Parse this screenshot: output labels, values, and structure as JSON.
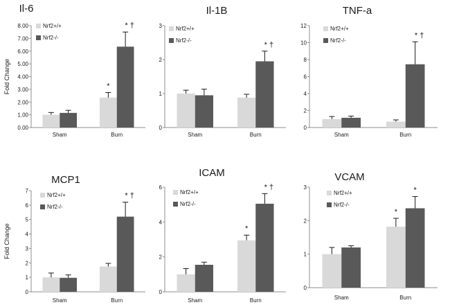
{
  "colors": {
    "wt": "#d9d9d9",
    "ko": "#595959",
    "axis": "#8c8c8c",
    "error": "#1a1a1a"
  },
  "chart_data": [
    {
      "type": "bar",
      "title": "Il-6",
      "ylabel": "Fold Change",
      "categories": [
        "Sham",
        "Burn"
      ],
      "ylim": [
        0,
        8
      ],
      "yticks": [
        "0.00",
        "1.00",
        "2.00",
        "3.00",
        "4.00",
        "5.00",
        "6.00",
        "7.00",
        "8.00"
      ],
      "legend": [
        "Nrf2+/+",
        "Nrf2-/-"
      ],
      "series": [
        {
          "name": "Nrf2+/+",
          "values": [
            1.0,
            2.35
          ],
          "errors": [
            0.18,
            0.4
          ],
          "annotations": [
            "",
            "*"
          ]
        },
        {
          "name": "Nrf2-/-",
          "values": [
            1.15,
            6.35
          ],
          "errors": [
            0.2,
            1.15
          ],
          "annotations": [
            "",
            "*  †"
          ]
        }
      ]
    },
    {
      "type": "bar",
      "title": "Il-1B",
      "ylabel": "",
      "categories": [
        "Sham",
        "Burn"
      ],
      "ylim": [
        0,
        3
      ],
      "yticks": [
        "0",
        "1",
        "2",
        "3"
      ],
      "legend": [
        "Nrf2+/+",
        "Nrf2-/-"
      ],
      "series": [
        {
          "name": "Nrf2+/+",
          "values": [
            1.0,
            0.88
          ],
          "errors": [
            0.1,
            0.1
          ],
          "annotations": [
            "",
            ""
          ]
        },
        {
          "name": "Nrf2-/-",
          "values": [
            0.95,
            1.95
          ],
          "errors": [
            0.18,
            0.3
          ],
          "annotations": [
            "",
            "*  †"
          ]
        }
      ]
    },
    {
      "type": "bar",
      "title": "TNF-a",
      "ylabel": "",
      "categories": [
        "Sham",
        "Burn"
      ],
      "ylim": [
        0,
        12
      ],
      "yticks": [
        "0",
        "2",
        "4",
        "6",
        "8",
        "10",
        "12"
      ],
      "legend": [
        "Nrf2+/+",
        "Nrf2-/-"
      ],
      "series": [
        {
          "name": "Nrf2+/+",
          "values": [
            1.0,
            0.7
          ],
          "errors": [
            0.3,
            0.2
          ],
          "annotations": [
            "",
            ""
          ]
        },
        {
          "name": "Nrf2-/-",
          "values": [
            1.15,
            7.45
          ],
          "errors": [
            0.2,
            2.65
          ],
          "annotations": [
            "",
            "*  †"
          ]
        }
      ]
    },
    {
      "type": "bar",
      "title": "MCP1",
      "ylabel": "Fold Change",
      "categories": [
        "Sham",
        "Burn"
      ],
      "ylim": [
        0,
        7
      ],
      "yticks": [
        "0",
        "1",
        "2",
        "3",
        "4",
        "5",
        "6",
        "7"
      ],
      "legend": [
        "Nrf2+/+",
        "Nrf2-/-"
      ],
      "series": [
        {
          "name": "Nrf2+/+",
          "values": [
            1.0,
            1.75
          ],
          "errors": [
            0.3,
            0.22
          ],
          "annotations": [
            "",
            ""
          ]
        },
        {
          "name": "Nrf2-/-",
          "values": [
            0.97,
            5.2
          ],
          "errors": [
            0.2,
            1.0
          ],
          "annotations": [
            "",
            "*  †"
          ]
        }
      ]
    },
    {
      "type": "bar",
      "title": "ICAM",
      "ylabel": "",
      "categories": [
        "Sham",
        "Burn"
      ],
      "ylim": [
        0,
        6
      ],
      "yticks": [
        "0",
        "2",
        "4",
        "6"
      ],
      "legend": [
        "Nrf2+/+",
        "Nrf2-/-"
      ],
      "series": [
        {
          "name": "Nrf2+/+",
          "values": [
            1.0,
            2.95
          ],
          "errors": [
            0.33,
            0.3
          ],
          "annotations": [
            "",
            "*"
          ]
        },
        {
          "name": "Nrf2-/-",
          "values": [
            1.55,
            5.05
          ],
          "errors": [
            0.15,
            0.58
          ],
          "annotations": [
            "",
            "*  †"
          ]
        }
      ]
    },
    {
      "type": "bar",
      "title": "VCAM",
      "ylabel": "",
      "categories": [
        "Sham",
        "Burn"
      ],
      "ylim": [
        0,
        3
      ],
      "yticks": [
        "0",
        "1",
        "2",
        "3"
      ],
      "legend": [
        "Nrf2+/+",
        "Nrf2-/-"
      ],
      "series": [
        {
          "name": "Nrf2+/+",
          "values": [
            1.0,
            1.82
          ],
          "errors": [
            0.2,
            0.25
          ],
          "annotations": [
            "",
            "*"
          ]
        },
        {
          "name": "Nrf2-/-",
          "values": [
            1.2,
            2.37
          ],
          "errors": [
            0.05,
            0.35
          ],
          "annotations": [
            "",
            "*"
          ]
        }
      ]
    }
  ]
}
